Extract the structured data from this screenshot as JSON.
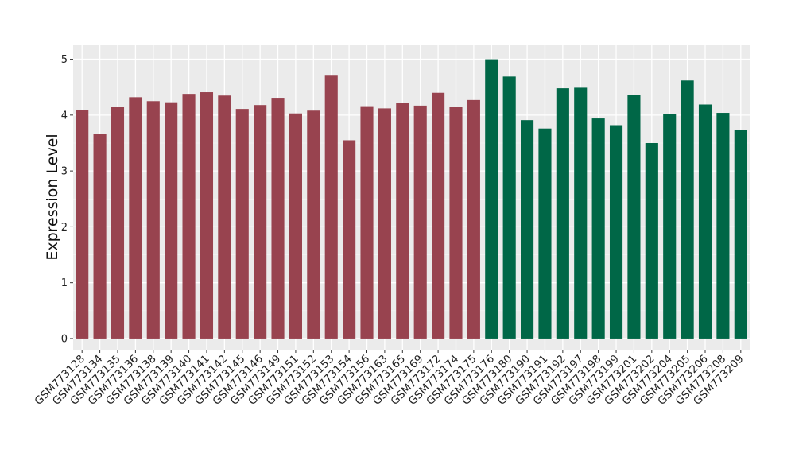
{
  "chart_data": {
    "type": "bar",
    "title": "",
    "xlabel": "",
    "ylabel": "Expression Level",
    "ylim": [
      -0.2,
      5.25
    ],
    "yticks": [
      0,
      1,
      2,
      3,
      4,
      5
    ],
    "grid": true,
    "legend": "none",
    "categories": [
      "GSM773128",
      "GSM773134",
      "GSM773135",
      "GSM773136",
      "GSM773138",
      "GSM773139",
      "GSM773140",
      "GSM773141",
      "GSM773142",
      "GSM773145",
      "GSM773146",
      "GSM773149",
      "GSM773151",
      "GSM773152",
      "GSM773153",
      "GSM773154",
      "GSM773156",
      "GSM773163",
      "GSM773165",
      "GSM773169",
      "GSM773172",
      "GSM773174",
      "GSM773175",
      "GSM773176",
      "GSM773180",
      "GSM773190",
      "GSM773191",
      "GSM773192",
      "GSM773197",
      "GSM773198",
      "GSM773199",
      "GSM773201",
      "GSM773202",
      "GSM773204",
      "GSM773205",
      "GSM773206",
      "GSM773208",
      "GSM773209"
    ],
    "values": [
      4.09,
      3.66,
      4.15,
      4.32,
      4.25,
      4.23,
      4.38,
      4.41,
      4.35,
      4.11,
      4.18,
      4.31,
      4.03,
      4.08,
      4.72,
      3.55,
      4.16,
      4.12,
      4.22,
      4.17,
      4.4,
      4.15,
      4.27,
      5.0,
      4.69,
      3.91,
      3.76,
      4.48,
      4.49,
      3.94,
      3.82,
      4.36,
      3.5,
      4.02,
      4.62,
      4.19,
      4.04,
      3.73
    ],
    "groups": [
      0,
      0,
      0,
      0,
      0,
      0,
      0,
      0,
      0,
      0,
      0,
      0,
      0,
      0,
      0,
      0,
      0,
      0,
      0,
      0,
      0,
      0,
      0,
      1,
      1,
      1,
      1,
      1,
      1,
      1,
      1,
      1,
      1,
      1,
      1,
      1,
      1,
      1
    ],
    "colors": {
      "group_colors": [
        "#98434f",
        "#006747"
      ],
      "panel_background": "#ebebeb",
      "grid_major": "#ffffff",
      "axis_text": "#222222"
    }
  }
}
